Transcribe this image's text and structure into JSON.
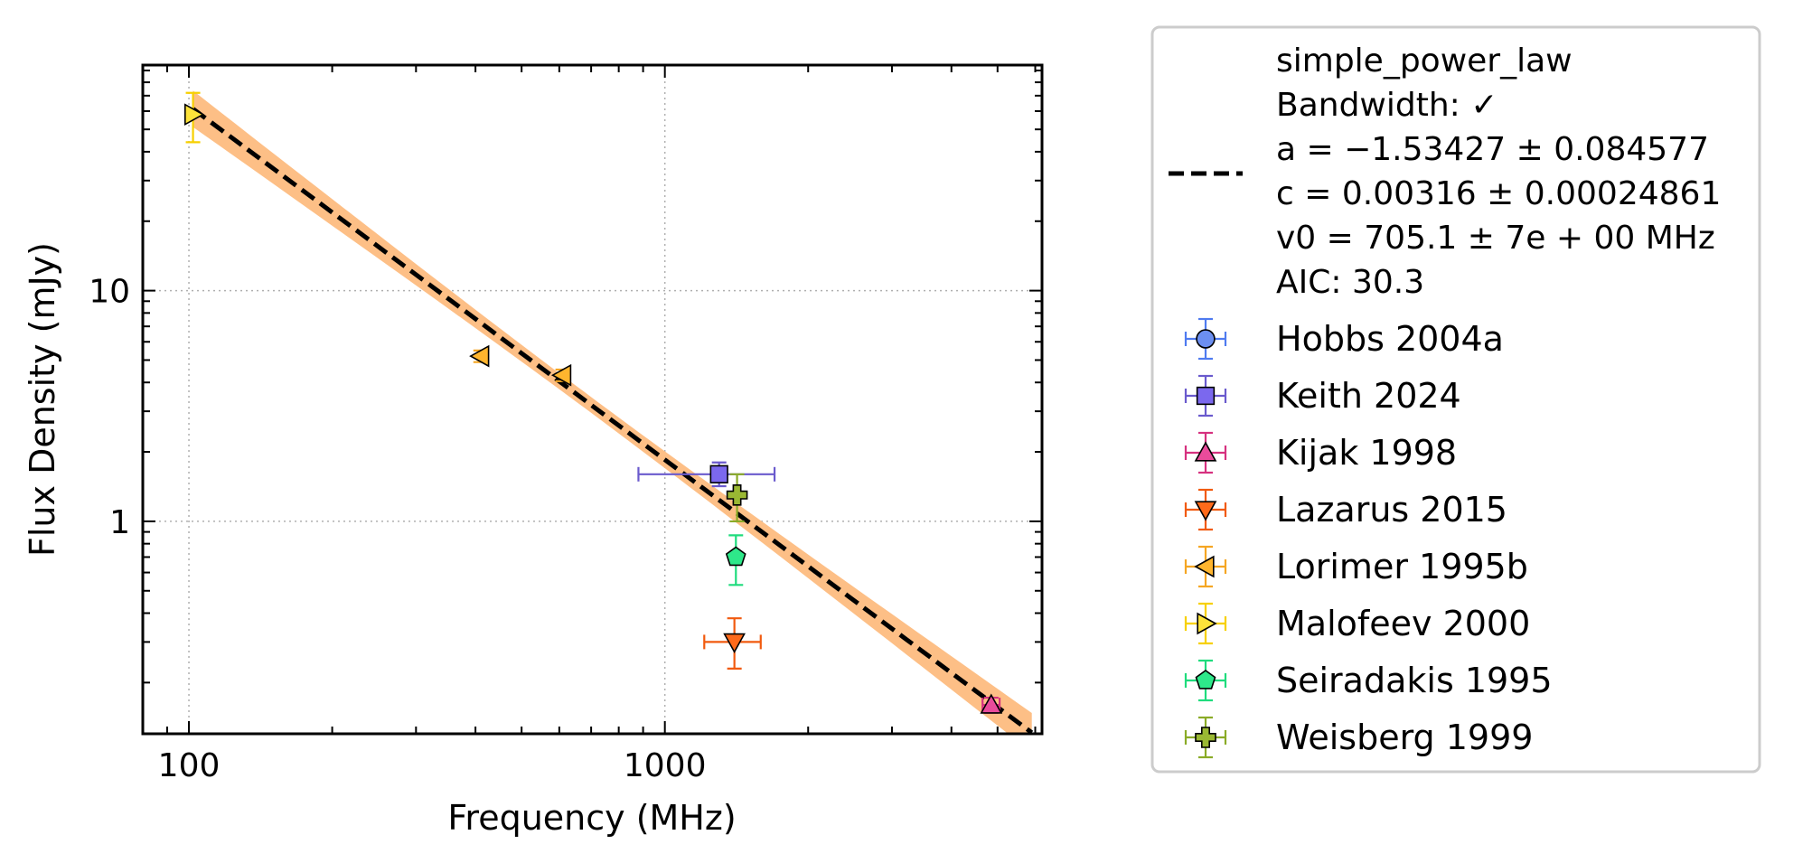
{
  "chart_data": {
    "type": "scatter",
    "xlabel": "Frequency (MHz)",
    "ylabel": "Flux Density (mJy)",
    "xscale": "log",
    "yscale": "log",
    "xlim": [
      80,
      6200
    ],
    "ylim": [
      0.12,
      95
    ],
    "x_ticks": [
      100,
      1000
    ],
    "x_tick_labels": [
      "100",
      "1000"
    ],
    "y_ticks": [
      1,
      10
    ],
    "y_tick_labels": [
      "1",
      "10"
    ],
    "grid": true,
    "legend_position": "outside right",
    "fit": {
      "name": "simple_power_law",
      "legend_lines": [
        "simple_power_law",
        "Bandwidth: ✓",
        "a = −1.53427 ± 0.084577",
        "c = 0.00316 ± 0.00024861",
        "v0 = 705.1 ± 7e + 00 MHz",
        "AIC: 30.3"
      ],
      "a": -1.53427,
      "a_err": 0.084577,
      "c": 0.00316,
      "c_err": 0.00024861,
      "v0": 705.1,
      "x_range": [
        102,
        5900
      ],
      "line_color": "#000000",
      "band_color": "#fdbf86"
    },
    "series": [
      {
        "name": "Hobbs 2004a",
        "marker": "circle",
        "color": "#6c8ff0",
        "edge": "#4f7bf0",
        "points": []
      },
      {
        "name": "Keith 2024",
        "marker": "square",
        "color": "#7b68ee",
        "edge": "#6a5acd",
        "points": [
          {
            "x": 1300,
            "y": 1.6,
            "xerr": [
              420,
              400
            ],
            "yerr": [
              0.18,
              0.2
            ]
          }
        ]
      },
      {
        "name": "Kijak 1998",
        "marker": "triangle-up",
        "color": "#e94b9b",
        "edge": "#d6317f",
        "points": [
          {
            "x": 4850,
            "y": 0.16,
            "xerr": [
              200,
              200
            ],
            "yerr": [
              0.012,
              0.012
            ]
          }
        ]
      },
      {
        "name": "Lazarus 2015",
        "marker": "triangle-down",
        "color": "#ff6a1a",
        "edge": "#f15a0e",
        "points": [
          {
            "x": 1400,
            "y": 0.3,
            "xerr": [
              190,
              190
            ],
            "yerr": [
              0.07,
              0.08
            ]
          }
        ]
      },
      {
        "name": "Lorimer 1995b",
        "marker": "triangle-left",
        "color": "#ffb52e",
        "edge": "#f5a623",
        "points": [
          {
            "x": 410,
            "y": 5.2,
            "xerr": [
              0,
              0
            ],
            "yerr": [
              0.3,
              0.3
            ]
          },
          {
            "x": 610,
            "y": 4.3,
            "xerr": [
              0,
              0
            ],
            "yerr": [
              0.25,
              0.25
            ]
          }
        ]
      },
      {
        "name": "Malofeev 2000",
        "marker": "triangle-right",
        "color": "#fde33a",
        "edge": "#f7d000",
        "points": [
          {
            "x": 102,
            "y": 58,
            "xerr": [
              0,
              0
            ],
            "yerr": [
              14,
              14
            ]
          }
        ]
      },
      {
        "name": "Seiradakis 1995",
        "marker": "pentagon",
        "color": "#2ee88a",
        "edge": "#1fdc7d",
        "points": [
          {
            "x": 1410,
            "y": 0.7,
            "xerr": [
              0,
              0
            ],
            "yerr": [
              0.17,
              0.17
            ]
          }
        ]
      },
      {
        "name": "Weisberg 1999",
        "marker": "plus",
        "color": "#9ab833",
        "edge": "#8aab27",
        "points": [
          {
            "x": 1418,
            "y": 1.3,
            "xerr": [
              0,
              0
            ],
            "yerr": [
              0.3,
              0.3
            ]
          }
        ]
      }
    ]
  }
}
